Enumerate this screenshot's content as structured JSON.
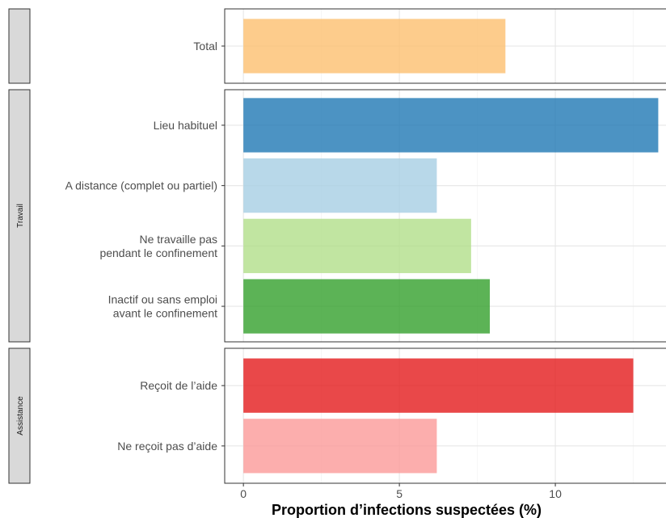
{
  "chart_data": {
    "type": "bar",
    "orientation": "horizontal",
    "xlabel": "Proportion d’infections suspectées (%)",
    "xlim": [
      -0.6,
      13.6
    ],
    "xticks": [
      0,
      5,
      10
    ],
    "grid": true,
    "legend": "none",
    "panels": [
      {
        "strip": "",
        "bars": [
          {
            "lines": [
              "Total"
            ],
            "value": 8.4,
            "color": "#fdbf6f"
          }
        ]
      },
      {
        "strip": "Travail",
        "bars": [
          {
            "lines": [
              "Lieu habituel"
            ],
            "value": 13.3,
            "color": "#1f78b4"
          },
          {
            "lines": [
              "A distance (complet ou partiel)"
            ],
            "value": 6.2,
            "color": "#a6cee3"
          },
          {
            "lines": [
              "Ne travaille pas",
              "pendant le confinement"
            ],
            "value": 7.3,
            "color": "#b2df8a"
          },
          {
            "lines": [
              "Inactif ou sans emploi",
              "avant le confinement"
            ],
            "value": 7.9,
            "color": "#33a02c"
          }
        ]
      },
      {
        "strip": "Assistance",
        "bars": [
          {
            "lines": [
              "Reçoit de l’aide"
            ],
            "value": 12.5,
            "color": "#e31a1c"
          },
          {
            "lines": [
              "Ne reçoit pas d’aide"
            ],
            "value": 6.2,
            "color": "#fb9a99"
          }
        ]
      }
    ]
  }
}
